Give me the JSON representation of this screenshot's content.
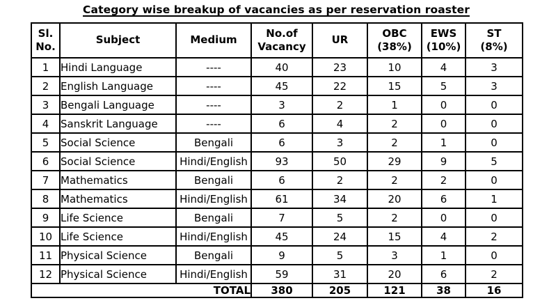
{
  "page": {
    "title": "Category wise breakup of vacancies as per reservation roaster"
  },
  "table": {
    "headers": {
      "sl_no": "Sl.\nNo.",
      "subject": "Subject",
      "medium": "Medium",
      "vacancy": "No.of\nVacancy",
      "ur": "UR",
      "obc": "OBC\n(38%)",
      "ews": "EWS\n(10%)",
      "st": "ST\n(8%)"
    },
    "rows": [
      {
        "sl_no": 1,
        "subject": "Hindi Language",
        "medium": "----",
        "vacancy": 40,
        "ur": 23,
        "obc": 10,
        "ews": 4,
        "st": 3
      },
      {
        "sl_no": 2,
        "subject": "English Language",
        "medium": "----",
        "vacancy": 45,
        "ur": 22,
        "obc": 15,
        "ews": 5,
        "st": 3
      },
      {
        "sl_no": 3,
        "subject": "Bengali Language",
        "medium": "----",
        "vacancy": 3,
        "ur": 2,
        "obc": 1,
        "ews": 0,
        "st": 0
      },
      {
        "sl_no": 4,
        "subject": "Sanskrit Language",
        "medium": "----",
        "vacancy": 6,
        "ur": 4,
        "obc": 2,
        "ews": 0,
        "st": 0
      },
      {
        "sl_no": 5,
        "subject": "Social Science",
        "medium": "Bengali",
        "vacancy": 6,
        "ur": 3,
        "obc": 2,
        "ews": 1,
        "st": 0
      },
      {
        "sl_no": 6,
        "subject": "Social Science",
        "medium": "Hindi/English",
        "vacancy": 93,
        "ur": 50,
        "obc": 29,
        "ews": 9,
        "st": 5
      },
      {
        "sl_no": 7,
        "subject": "Mathematics",
        "medium": "Bengali",
        "vacancy": 6,
        "ur": 2,
        "obc": 2,
        "ews": 2,
        "st": 0
      },
      {
        "sl_no": 8,
        "subject": "Mathematics",
        "medium": "Hindi/English",
        "vacancy": 61,
        "ur": 34,
        "obc": 20,
        "ews": 6,
        "st": 1
      },
      {
        "sl_no": 9,
        "subject": "Life Science",
        "medium": "Bengali",
        "vacancy": 7,
        "ur": 5,
        "obc": 2,
        "ews": 0,
        "st": 0
      },
      {
        "sl_no": 10,
        "subject": "Life Science",
        "medium": "Hindi/English",
        "vacancy": 45,
        "ur": 24,
        "obc": 15,
        "ews": 4,
        "st": 2
      },
      {
        "sl_no": 11,
        "subject": "Physical Science",
        "medium": "Bengali",
        "vacancy": 9,
        "ur": 5,
        "obc": 3,
        "ews": 1,
        "st": 0
      },
      {
        "sl_no": 12,
        "subject": "Physical Science",
        "medium": "Hindi/English",
        "vacancy": 59,
        "ur": 31,
        "obc": 20,
        "ews": 6,
        "st": 2
      }
    ],
    "total": {
      "label": "TOTAL",
      "vacancy": 380,
      "ur": 205,
      "obc": 121,
      "ews": 38,
      "st": 16
    }
  }
}
